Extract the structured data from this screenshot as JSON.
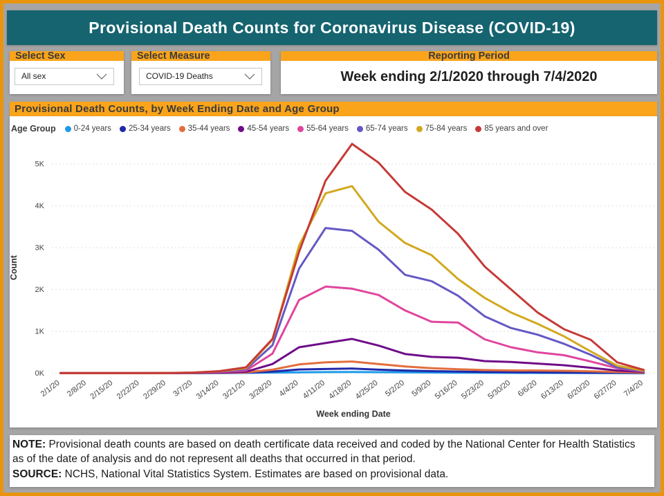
{
  "header": {
    "title": "Provisional Death Counts for Coronavirus Disease (COVID-19)"
  },
  "selectors": {
    "sex": {
      "label": "Select Sex",
      "value": "All sex"
    },
    "measure": {
      "label": "Select Measure",
      "value": "COVID-19 Deaths"
    },
    "period": {
      "label": "Reporting Period",
      "value": "Week ending 2/1/2020 through 7/4/2020"
    }
  },
  "colors": {
    "frame_orange": "#E9940F",
    "bar_orange": "#FAA41B",
    "teal": "#156470",
    "background_gray": "#A5A5A5",
    "gridline": "#DADADA",
    "axis_text": "#444444"
  },
  "chart_data": {
    "type": "line",
    "title": "Provisional Death Counts, by Week Ending Date and Age Group",
    "legend_title": "Age Group",
    "xlabel": "Week ending Date",
    "ylabel": "Count",
    "y_ticks": [
      "0K",
      "1K",
      "2K",
      "3K",
      "4K",
      "5K"
    ],
    "ylim": [
      0,
      5500
    ],
    "grid": true,
    "legend_position": "top",
    "x": [
      "2/1/20",
      "2/8/20",
      "2/15/20",
      "2/22/20",
      "2/29/20",
      "3/7/20",
      "3/14/20",
      "3/21/20",
      "3/28/20",
      "4/4/20",
      "4/11/20",
      "4/18/20",
      "4/25/20",
      "5/2/20",
      "5/9/20",
      "5/16/20",
      "5/23/20",
      "5/30/20",
      "6/6/20",
      "6/13/20",
      "6/20/20",
      "6/27/20",
      "7/4/20"
    ],
    "series": [
      {
        "name": "0-24 years",
        "color": "#1E9BE9",
        "values": [
          0,
          0,
          0,
          1,
          1,
          2,
          4,
          8,
          15,
          22,
          27,
          30,
          25,
          20,
          16,
          12,
          10,
          8,
          7,
          6,
          5,
          3,
          2
        ]
      },
      {
        "name": "25-34 years",
        "color": "#2028A9",
        "values": [
          1,
          1,
          1,
          2,
          2,
          4,
          8,
          15,
          40,
          90,
          100,
          110,
          85,
          65,
          50,
          40,
          30,
          25,
          20,
          15,
          12,
          8,
          5
        ]
      },
      {
        "name": "35-44 years",
        "color": "#E26E3D",
        "values": [
          1,
          1,
          1,
          2,
          3,
          5,
          10,
          18,
          85,
          210,
          260,
          280,
          220,
          160,
          120,
          94,
          76,
          66,
          64,
          58,
          47,
          28,
          14
        ]
      },
      {
        "name": "45-54 years",
        "color": "#6E0D87",
        "values": [
          1,
          1,
          1,
          2,
          3,
          6,
          15,
          35,
          220,
          620,
          720,
          820,
          660,
          460,
          390,
          370,
          290,
          270,
          230,
          190,
          130,
          65,
          30
        ]
      },
      {
        "name": "55-64 years",
        "color": "#E0459D",
        "values": [
          1,
          1,
          1,
          2,
          4,
          10,
          30,
          65,
          470,
          1750,
          2070,
          2020,
          1870,
          1500,
          1230,
          1210,
          810,
          620,
          500,
          430,
          280,
          120,
          40
        ]
      },
      {
        "name": "65-74 years",
        "color": "#6458C4",
        "values": [
          1,
          1,
          1,
          2,
          4,
          12,
          40,
          95,
          670,
          2500,
          3470,
          3400,
          2950,
          2350,
          2200,
          1850,
          1360,
          1080,
          920,
          700,
          440,
          140,
          50
        ]
      },
      {
        "name": "75-84 years",
        "color": "#D2A81E",
        "values": [
          1,
          1,
          1,
          2,
          5,
          15,
          45,
          120,
          800,
          3050,
          4300,
          4470,
          3620,
          3110,
          2820,
          2250,
          1800,
          1450,
          1180,
          880,
          520,
          180,
          60
        ]
      },
      {
        "name": "85 years and over",
        "color": "#C53A37",
        "values": [
          1,
          1,
          1,
          2,
          5,
          15,
          50,
          140,
          820,
          2900,
          4600,
          5480,
          5030,
          4330,
          3910,
          3330,
          2550,
          2000,
          1450,
          1050,
          800,
          260,
          80
        ]
      }
    ]
  },
  "note": {
    "line1_prefix": "NOTE:",
    "line1_rest": " Provisional death counts are based on death certificate data received and coded by the National Center for Health Statistics",
    "line2": "as of the date of analysis and do not represent all deaths that occurred in that period.",
    "line3_prefix": "SOURCE:",
    "line3_rest": " NCHS, National Vital Statistics System. Estimates are based on provisional data."
  }
}
